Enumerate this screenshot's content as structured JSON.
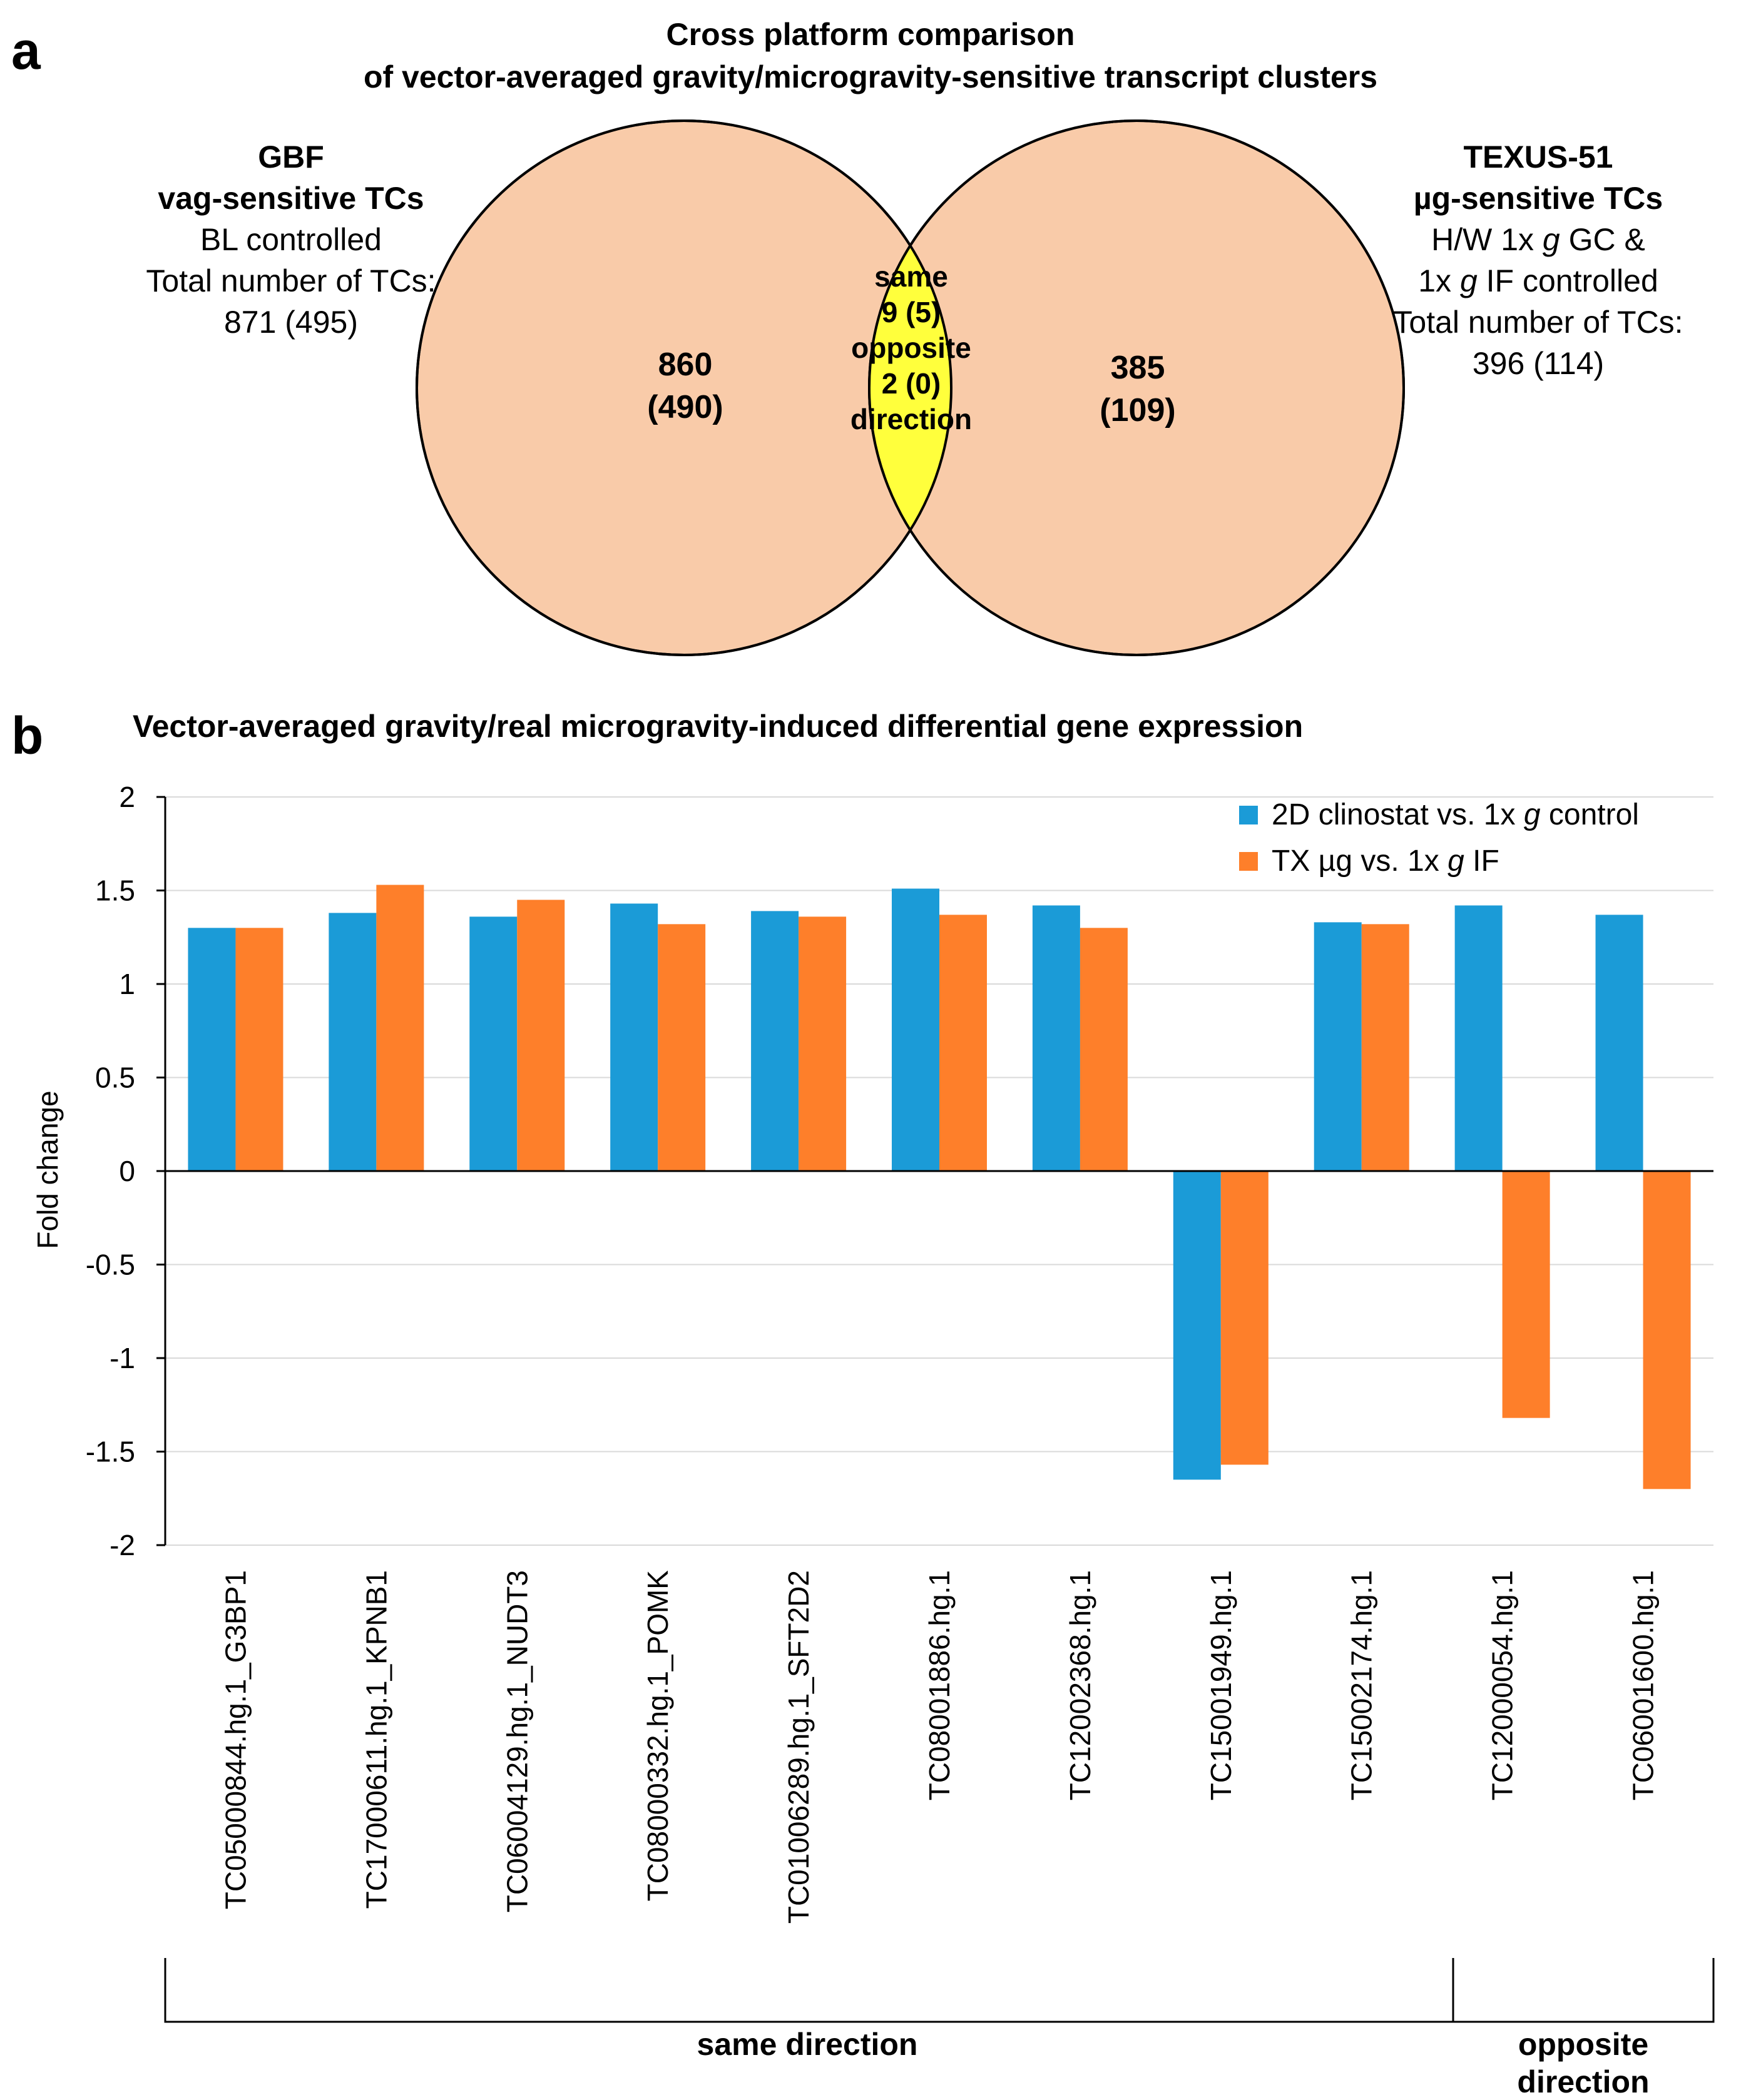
{
  "panel_a": {
    "label": "a",
    "title_line1": "Cross platform comparison",
    "title_line2": "of vector-averaged gravity/microgravity-sensitive transcript clusters",
    "left_set": {
      "name_line1": "GBF",
      "name_line2": "vag-sensitive TCs",
      "desc_line1": "BL controlled",
      "desc_line2": "Total number of TCs:",
      "desc_line3": "871 (495)",
      "unique_count": "860",
      "unique_count_sub": "(490)"
    },
    "right_set": {
      "name_line1": "TEXUS-51",
      "name_line2": "µg-sensitive TCs",
      "desc_line1a": "H/W 1x ",
      "desc_line1_g": "g",
      "desc_line1b": " GC &",
      "desc_line2a": "1x ",
      "desc_line2_g": "g",
      "desc_line2b": " IF controlled",
      "desc_line3": "Total number of TCs:",
      "desc_line4": "396 (114)",
      "unique_count": "385",
      "unique_count_sub": "(109)"
    },
    "intersection": {
      "line1": "same",
      "line2": "9 (5)",
      "line3": "opposite",
      "line4": "2 (0)",
      "line5": "direction"
    },
    "colors": {
      "circle_fill": "#F9CBA9",
      "intersection_fill": "#FFFF3C",
      "outline": "#000000"
    }
  },
  "panel_b": {
    "label": "b",
    "group_same": "same direction",
    "group_opposite_line1": "opposite",
    "group_opposite_line2": "direction"
  },
  "chart_data": {
    "type": "bar",
    "title": "Vector-averaged gravity/real microgravity-induced differential gene expression",
    "xlabel": "",
    "ylabel": "Fold change",
    "ylim": [
      -2,
      2
    ],
    "yticks": [
      2,
      1.5,
      1,
      0.5,
      0,
      -0.5,
      -1,
      -1.5,
      -2
    ],
    "ytick_labels": [
      "2",
      "1.5",
      "1",
      "0.5",
      "0",
      "-0.5",
      "-1",
      "-1.5",
      "-2"
    ],
    "grid": true,
    "legend_position": "top-right",
    "categories": [
      "TC05000844.hg.1_G3BP1",
      "TC17000611.hg.1_KPNB1",
      "TC06004129.hg.1_NUDT3",
      "TC08000332.hg.1_POMK",
      "TC01006289.hg.1_SFT2D2",
      "TC08001886.hg.1",
      "TC12002368.hg.1",
      "TC15001949.hg.1",
      "TC15002174.hg.1",
      "TC12000054.hg.1",
      "TC06001600.hg.1"
    ],
    "series": [
      {
        "name_a": "2D clinostat vs. 1x ",
        "name_g": "g",
        "name_b": " control",
        "color": "#1B9BD7",
        "values": [
          1.3,
          1.38,
          1.36,
          1.43,
          1.39,
          1.51,
          1.42,
          -1.65,
          1.33,
          1.42,
          1.37
        ]
      },
      {
        "name_a": "TX µg vs. 1x ",
        "name_g": "g",
        "name_b": " IF",
        "color": "#FE7F2A",
        "values": [
          1.3,
          1.53,
          1.45,
          1.32,
          1.36,
          1.37,
          1.3,
          -1.57,
          1.32,
          -1.32,
          -1.7
        ]
      }
    ]
  }
}
